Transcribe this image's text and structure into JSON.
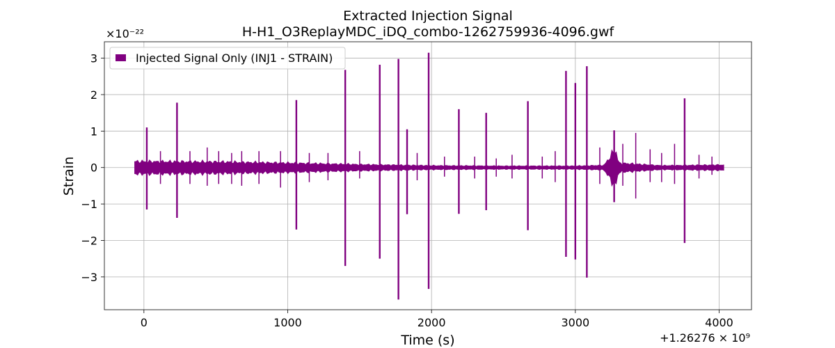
{
  "chart_data": {
    "type": "line",
    "title": "Extracted Injection Signal",
    "subtitle": "H-H1_O3ReplayMDC_iDQ_combo-1262759936-4096.gwf",
    "xlabel": "Time (s)",
    "ylabel": "Strain",
    "y_multiplier_label": "×10⁻²²",
    "x_offset_label": "+1.26276 × 10⁹",
    "x_offset": 1262760000,
    "y_scale": 1e-22,
    "xlim": [
      -275,
      4225
    ],
    "ylim": [
      -3.9,
      3.45
    ],
    "xticks": [
      0,
      1000,
      2000,
      3000,
      4000
    ],
    "xtick_labels": [
      "0",
      "1000",
      "2000",
      "3000",
      "4000"
    ],
    "yticks": [
      -3,
      -2,
      -1,
      0,
      1,
      2,
      3
    ],
    "ytick_labels": [
      "−3",
      "−2",
      "−1",
      "0",
      "1",
      "2",
      "3"
    ],
    "grid": true,
    "legend_position": "top-left",
    "series": [
      {
        "name": "Injected Signal Only (INJ1 - STRAIN)",
        "color": "#800080",
        "x_range": [
          -64,
          4032
        ],
        "baseline_envelope": [
          {
            "x": -64,
            "amp": 0.16
          },
          {
            "x": 500,
            "amp": 0.15
          },
          {
            "x": 1000,
            "amp": 0.12
          },
          {
            "x": 1500,
            "amp": 0.08
          },
          {
            "x": 2000,
            "amp": 0.05
          },
          {
            "x": 2500,
            "amp": 0.04
          },
          {
            "x": 3000,
            "amp": 0.04
          },
          {
            "x": 3200,
            "amp": 0.06
          },
          {
            "x": 3280,
            "amp": 0.5
          },
          {
            "x": 3300,
            "amp": 0.12
          },
          {
            "x": 3600,
            "amp": 0.05
          },
          {
            "x": 4032,
            "amp": 0.07
          }
        ],
        "spikes": [
          {
            "x": 20,
            "max": 1.1,
            "min": -1.15
          },
          {
            "x": 230,
            "max": 1.78,
            "min": -1.38
          },
          {
            "x": 1060,
            "max": 1.85,
            "min": -1.7
          },
          {
            "x": 1400,
            "max": 2.68,
            "min": -2.7
          },
          {
            "x": 1640,
            "max": 2.82,
            "min": -2.5
          },
          {
            "x": 1770,
            "max": 2.98,
            "min": -3.62
          },
          {
            "x": 1830,
            "max": 1.05,
            "min": -1.28
          },
          {
            "x": 1980,
            "max": 3.15,
            "min": -3.33
          },
          {
            "x": 2190,
            "max": 1.6,
            "min": -1.27
          },
          {
            "x": 2380,
            "max": 1.5,
            "min": -1.17
          },
          {
            "x": 2670,
            "max": 1.82,
            "min": -1.72
          },
          {
            "x": 2935,
            "max": 2.65,
            "min": -2.45
          },
          {
            "x": 3000,
            "max": 2.32,
            "min": -2.52
          },
          {
            "x": 3080,
            "max": 2.78,
            "min": -3.02
          },
          {
            "x": 3270,
            "max": 1.02,
            "min": -0.95
          },
          {
            "x": 3760,
            "max": 1.9,
            "min": -2.07
          }
        ],
        "minor_bursts": [
          {
            "x": 115,
            "max": 0.45,
            "min": -0.45
          },
          {
            "x": 320,
            "max": 0.45,
            "min": -0.45
          },
          {
            "x": 440,
            "max": 0.55,
            "min": -0.5
          },
          {
            "x": 520,
            "max": 0.45,
            "min": -0.45
          },
          {
            "x": 610,
            "max": 0.4,
            "min": -0.45
          },
          {
            "x": 680,
            "max": 0.45,
            "min": -0.5
          },
          {
            "x": 800,
            "max": 0.45,
            "min": -0.45
          },
          {
            "x": 950,
            "max": 0.45,
            "min": -0.55
          },
          {
            "x": 1150,
            "max": 0.4,
            "min": -0.4
          },
          {
            "x": 1280,
            "max": 0.4,
            "min": -0.35
          },
          {
            "x": 1500,
            "max": 0.45,
            "min": -0.3
          },
          {
            "x": 1900,
            "max": 0.4,
            "min": -0.35
          },
          {
            "x": 2090,
            "max": 0.3,
            "min": -0.25
          },
          {
            "x": 2300,
            "max": 0.3,
            "min": -0.3
          },
          {
            "x": 2450,
            "max": 0.25,
            "min": -0.25
          },
          {
            "x": 2560,
            "max": 0.35,
            "min": -0.3
          },
          {
            "x": 2770,
            "max": 0.3,
            "min": -0.3
          },
          {
            "x": 2860,
            "max": 0.45,
            "min": -0.4
          },
          {
            "x": 3170,
            "max": 0.55,
            "min": -0.45
          },
          {
            "x": 3330,
            "max": 0.65,
            "min": -0.5
          },
          {
            "x": 3420,
            "max": 0.95,
            "min": -0.85
          },
          {
            "x": 3520,
            "max": 0.5,
            "min": -0.4
          },
          {
            "x": 3600,
            "max": 0.4,
            "min": -0.4
          },
          {
            "x": 3690,
            "max": 0.65,
            "min": -0.45
          },
          {
            "x": 3860,
            "max": 0.35,
            "min": -0.3
          },
          {
            "x": 3950,
            "max": 0.3,
            "min": -0.2
          }
        ]
      }
    ]
  }
}
